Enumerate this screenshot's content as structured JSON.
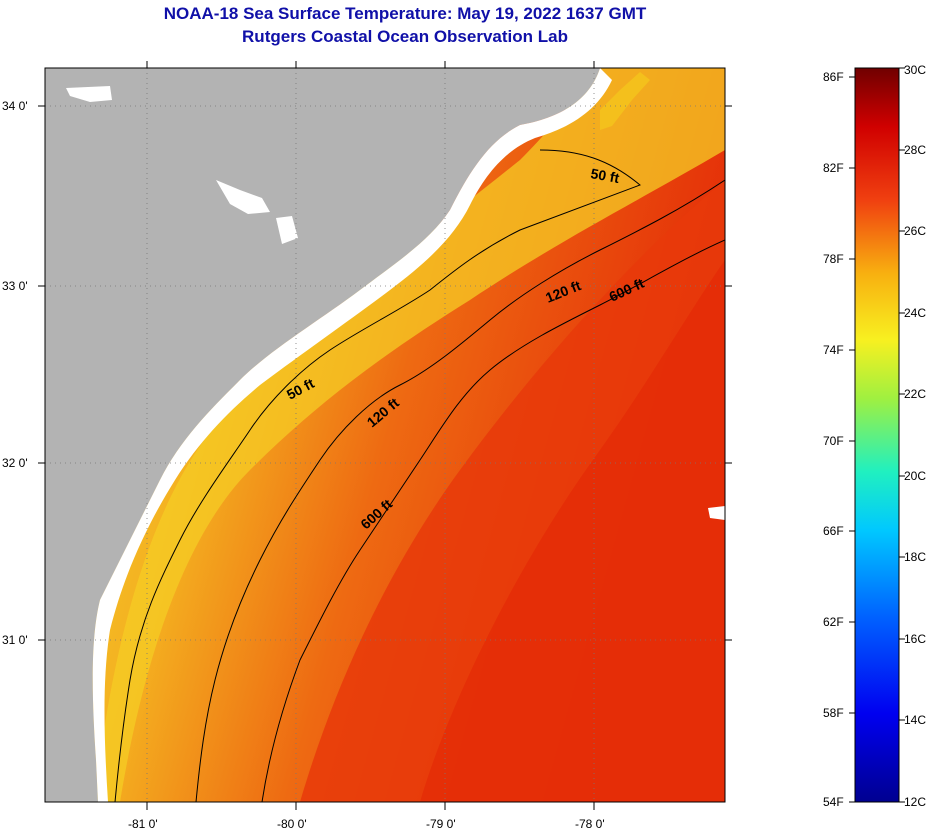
{
  "title": {
    "line1": "NOAA-18 Sea Surface Temperature:  May 19, 2022 1637 GMT",
    "line2": "Rutgers Coastal Ocean Observation Lab"
  },
  "map": {
    "lat_ticks": [
      "34 0'",
      "33 0'",
      "32 0'",
      "31 0'"
    ],
    "lon_ticks": [
      "-81 0'",
      "-80 0'",
      "-79 0'",
      "-78 0'"
    ],
    "contour_labels": [
      "50 ft",
      "50 ft",
      "120 ft",
      "120 ft",
      "600 ft",
      "600 ft"
    ]
  },
  "colorbar": {
    "f_labels": [
      "86F",
      "82F",
      "78F",
      "74F",
      "70F",
      "66F",
      "62F",
      "58F",
      "54F"
    ],
    "c_labels": [
      "30C",
      "28C",
      "26C",
      "24C",
      "22C",
      "20C",
      "18C",
      "16C",
      "14C",
      "12C"
    ],
    "range_c": [
      12,
      30
    ],
    "range_f": [
      54,
      86
    ]
  },
  "colors": {
    "title": "#1010a8",
    "land": "#b3b3b3",
    "shore_whites": "#ffffff",
    "ocean_warm": "#e8300a",
    "ocean_mid": "#f28a14",
    "ocean_near": "#f6c820"
  }
}
